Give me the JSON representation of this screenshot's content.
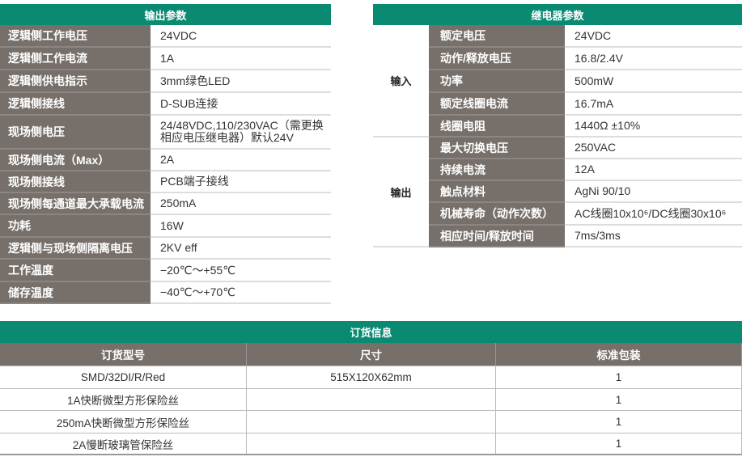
{
  "output_params": {
    "title": "输出参数",
    "rows": [
      {
        "label": "逻辑侧工作电压",
        "value": "24VDC"
      },
      {
        "label": "逻辑侧工作电流",
        "value": "1A"
      },
      {
        "label": "逻辑侧供电指示",
        "value": "3mm绿色LED"
      },
      {
        "label": "逻辑侧接线",
        "value": "D-SUB连接"
      },
      {
        "label": "现场侧电压",
        "value": "24/48VDC,110/230VAC（需更换相应电压继电器）默认24V"
      },
      {
        "label": "现场侧电流（Max）",
        "value": "2A"
      },
      {
        "label": "现场侧接线",
        "value": "PCB端子接线"
      },
      {
        "label": "现场侧每通道最大承载电流",
        "value": "250mA"
      },
      {
        "label": "功耗",
        "value": "16W"
      },
      {
        "label": "逻辑侧与现场侧隔离电压",
        "value": "2KV eff"
      },
      {
        "label": "工作温度",
        "value": "−20℃～+55℃"
      },
      {
        "label": "储存温度",
        "value": "−40℃～+70℃"
      }
    ]
  },
  "relay_params": {
    "title": "继电器参数",
    "groups": [
      {
        "name": "输入",
        "rows": [
          {
            "label": "额定电压",
            "value": "24VDC"
          },
          {
            "label": "动作/释放电压",
            "value": "16.8/2.4V"
          },
          {
            "label": "功率",
            "value": "500mW"
          },
          {
            "label": "额定线圈电流",
            "value": "16.7mA"
          },
          {
            "label": "线圈电阻",
            "value": "1440Ω ±10%"
          }
        ]
      },
      {
        "name": "输出",
        "rows": [
          {
            "label": "最大切换电压",
            "value": "250VAC"
          },
          {
            "label": "持续电流",
            "value": "12A"
          },
          {
            "label": "触点材料",
            "value": "AgNi 90/10"
          },
          {
            "label": "机械寿命（动作次数）",
            "value": "AC线圈10x10⁶/DC线圈30x10⁶"
          },
          {
            "label": "相应时间/释放时间",
            "value": "7ms/3ms"
          }
        ]
      }
    ]
  },
  "order_info": {
    "title": "订货信息",
    "columns": [
      "订货型号",
      "尺寸",
      "标准包装"
    ],
    "rows": [
      [
        "SMD/32DI/R/Red",
        "515X120X62mm",
        "1"
      ],
      [
        "1A快断微型方形保险丝",
        "",
        "1"
      ],
      [
        "250mA快断微型方形保险丝",
        "",
        "1"
      ],
      [
        "2A慢断玻璃管保险丝",
        "",
        "1"
      ]
    ]
  },
  "colors": {
    "header": "#0b8a72",
    "label_bg": "#766f6a"
  }
}
